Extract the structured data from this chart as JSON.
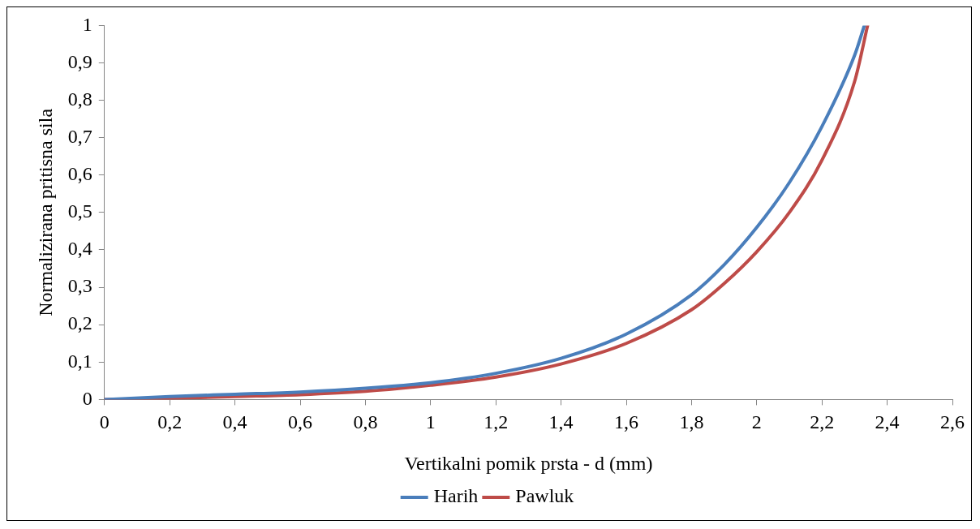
{
  "chart_data": {
    "type": "line",
    "xlabel": "Vertikalni pomik prsta - d (mm)",
    "ylabel": "Normalizirana pritisna sila",
    "xlim": [
      0,
      2.6
    ],
    "xticks": [
      0,
      {
        "value": 0.2,
        "label": "0,2"
      },
      {
        "value": 0.4,
        "label": "0,4"
      },
      {
        "value": 0.6,
        "label": "0,6"
      },
      {
        "value": 0.8,
        "label": "0,8"
      },
      1,
      {
        "value": 1.2,
        "label": "1,2"
      },
      {
        "value": 1.4,
        "label": "1,4"
      },
      {
        "value": 1.6,
        "label": "1,6"
      },
      {
        "value": 1.8,
        "label": "1,8"
      },
      2,
      {
        "value": 2.2,
        "label": "2,2"
      },
      {
        "value": 2.4,
        "label": "2,4"
      },
      {
        "value": 2.6,
        "label": "2,6"
      }
    ],
    "ylim": [
      0,
      1
    ],
    "yticks": [
      0,
      {
        "value": 0.1,
        "label": "0,1"
      },
      {
        "value": 0.2,
        "label": "0,2"
      },
      {
        "value": 0.3,
        "label": "0,3"
      },
      {
        "value": 0.4,
        "label": "0,4"
      },
      {
        "value": 0.5,
        "label": "0,5"
      },
      {
        "value": 0.6,
        "label": "0,6"
      },
      {
        "value": 0.7,
        "label": "0,7"
      },
      {
        "value": 0.8,
        "label": "0,8"
      },
      {
        "value": 0.9,
        "label": "0,9"
      },
      1
    ],
    "grid": false,
    "legend": "bottom",
    "marker": "none",
    "line_style": "solid",
    "series": [
      {
        "name": "Harih",
        "color": "#4a7ebb",
        "x": [
          0,
          0.2,
          0.4,
          0.6,
          0.8,
          1.0,
          1.2,
          1.4,
          1.6,
          1.8,
          1.9,
          2.0,
          2.1,
          2.2,
          2.3,
          2.33
        ],
        "values": [
          0,
          0.008,
          0.014,
          0.02,
          0.03,
          0.045,
          0.07,
          0.11,
          0.175,
          0.28,
          0.36,
          0.46,
          0.58,
          0.73,
          0.92,
          1
        ]
      },
      {
        "name": "Pawluk",
        "color": "#be4b48",
        "x": [
          0,
          0.2,
          0.4,
          0.6,
          0.8,
          1.0,
          1.2,
          1.4,
          1.6,
          1.8,
          1.9,
          2.0,
          2.1,
          2.2,
          2.3,
          2.34
        ],
        "values": [
          0,
          0.003,
          0.008,
          0.013,
          0.022,
          0.038,
          0.06,
          0.095,
          0.15,
          0.24,
          0.31,
          0.395,
          0.5,
          0.64,
          0.85,
          1
        ]
      }
    ]
  }
}
